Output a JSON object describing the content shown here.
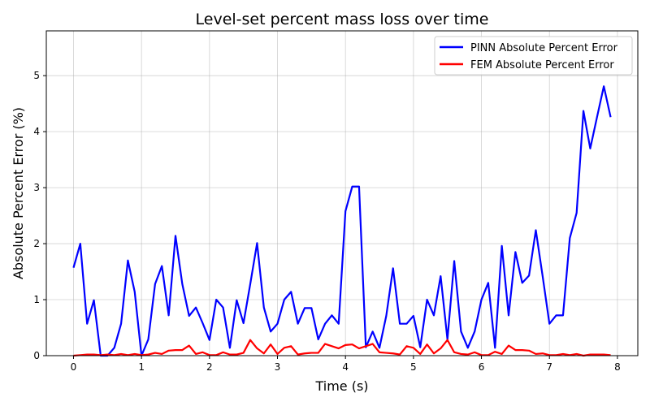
{
  "chart_data": {
    "type": "line",
    "title": "Level-set percent mass loss over time",
    "xlabel": "Time (s)",
    "ylabel": "Absolute Percent Error (%)",
    "xlim": [
      -0.4,
      8.3
    ],
    "ylim": [
      0,
      5.8
    ],
    "xticks": [
      0,
      1,
      2,
      3,
      4,
      5,
      6,
      7,
      8
    ],
    "yticks": [
      0,
      1,
      2,
      3,
      4,
      5
    ],
    "grid": true,
    "legend_position": "top-right",
    "series": [
      {
        "name": "PINN Absolute Percent Error",
        "color": "#0000ff",
        "x": [
          0.0,
          0.1,
          0.2,
          0.3,
          0.4,
          0.5,
          0.6,
          0.7,
          0.8,
          0.9,
          1.0,
          1.1,
          1.2,
          1.3,
          1.4,
          1.5,
          1.6,
          1.7,
          1.8,
          1.9,
          2.0,
          2.1,
          2.2,
          2.3,
          2.4,
          2.5,
          2.6,
          2.7,
          2.8,
          2.9,
          3.0,
          3.1,
          3.2,
          3.3,
          3.4,
          3.5,
          3.6,
          3.7,
          3.8,
          3.9,
          4.0,
          4.1,
          4.2,
          4.3,
          4.4,
          4.5,
          4.6,
          4.7,
          4.8,
          4.9,
          5.0,
          5.1,
          5.2,
          5.3,
          5.4,
          5.5,
          5.6,
          5.7,
          5.8,
          5.9,
          6.0,
          6.1,
          6.2,
          6.3,
          6.4,
          6.5,
          6.6,
          6.7,
          6.8,
          6.9,
          7.0,
          7.1,
          7.2,
          7.3,
          7.4,
          7.5,
          7.6,
          7.7,
          7.8,
          7.9
        ],
        "values": [
          1.57,
          2.0,
          0.57,
          0.99,
          0.0,
          0.0,
          0.14,
          0.57,
          1.7,
          1.14,
          0.0,
          0.29,
          1.28,
          1.6,
          0.72,
          2.14,
          1.28,
          0.71,
          0.86,
          0.58,
          0.28,
          1.0,
          0.86,
          0.14,
          0.99,
          0.58,
          1.28,
          2.01,
          0.86,
          0.43,
          0.57,
          1.0,
          1.14,
          0.57,
          0.85,
          0.85,
          0.29,
          0.57,
          0.72,
          0.57,
          2.58,
          3.02,
          3.02,
          0.15,
          0.43,
          0.14,
          0.71,
          1.56,
          0.57,
          0.57,
          0.71,
          0.15,
          1.0,
          0.72,
          1.42,
          0.29,
          1.69,
          0.43,
          0.14,
          0.43,
          1.0,
          1.3,
          0.14,
          1.96,
          0.72,
          1.85,
          1.3,
          1.43,
          2.24,
          1.42,
          0.57,
          0.72,
          0.72,
          2.1,
          2.55,
          4.37,
          3.7,
          4.26,
          4.81,
          4.26
        ]
      },
      {
        "name": "FEM Absolute Percent Error",
        "color": "#ff0000",
        "x": [
          0.0,
          0.1,
          0.2,
          0.3,
          0.4,
          0.5,
          0.6,
          0.7,
          0.8,
          0.9,
          1.0,
          1.1,
          1.2,
          1.3,
          1.4,
          1.5,
          1.6,
          1.7,
          1.8,
          1.9,
          2.0,
          2.1,
          2.2,
          2.3,
          2.4,
          2.5,
          2.6,
          2.7,
          2.8,
          2.9,
          3.0,
          3.1,
          3.2,
          3.3,
          3.4,
          3.5,
          3.6,
          3.7,
          3.8,
          3.9,
          4.0,
          4.1,
          4.2,
          4.3,
          4.4,
          4.5,
          4.6,
          4.7,
          4.8,
          4.9,
          5.0,
          5.1,
          5.2,
          5.3,
          5.4,
          5.5,
          5.6,
          5.7,
          5.8,
          5.9,
          6.0,
          6.1,
          6.2,
          6.3,
          6.4,
          6.5,
          6.6,
          6.7,
          6.8,
          6.9,
          7.0,
          7.1,
          7.2,
          7.3,
          7.4,
          7.5,
          7.6,
          7.7,
          7.8,
          7.9
        ],
        "values": [
          0.0,
          0.01,
          0.02,
          0.02,
          0.01,
          0.02,
          0.01,
          0.03,
          0.01,
          0.03,
          0.01,
          0.02,
          0.05,
          0.03,
          0.09,
          0.1,
          0.1,
          0.18,
          0.03,
          0.06,
          0.01,
          0.01,
          0.06,
          0.02,
          0.02,
          0.05,
          0.28,
          0.13,
          0.04,
          0.2,
          0.03,
          0.14,
          0.17,
          0.02,
          0.04,
          0.05,
          0.05,
          0.21,
          0.17,
          0.13,
          0.19,
          0.2,
          0.13,
          0.17,
          0.21,
          0.06,
          0.05,
          0.04,
          0.02,
          0.17,
          0.14,
          0.03,
          0.2,
          0.04,
          0.13,
          0.28,
          0.06,
          0.03,
          0.02,
          0.06,
          0.01,
          0.01,
          0.07,
          0.03,
          0.18,
          0.1,
          0.1,
          0.09,
          0.03,
          0.04,
          0.01,
          0.01,
          0.03,
          0.01,
          0.03,
          0.0,
          0.02,
          0.02,
          0.02,
          0.01
        ]
      }
    ]
  }
}
